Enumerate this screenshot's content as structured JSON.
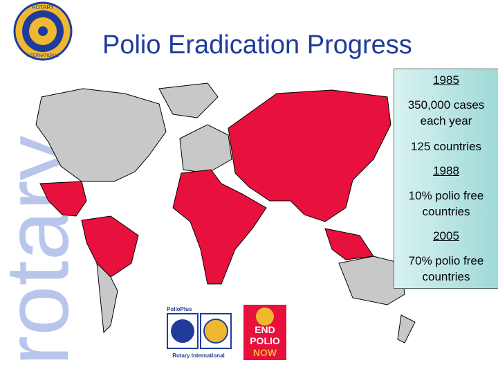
{
  "header": {
    "title": "Polio Eradication Progress"
  },
  "watermark": "rotary",
  "emblem": {
    "top": "ROTARY",
    "bottom": "INTERNATIONAL"
  },
  "info_box": {
    "items": [
      {
        "year": "1985",
        "lines": [
          "350,000 cases each year",
          "125 countries"
        ]
      },
      {
        "year": "1988",
        "lines": [
          "10% polio free countries"
        ]
      },
      {
        "year": "2005",
        "lines": [
          "70% polio free countries"
        ]
      }
    ]
  },
  "logos": {
    "polioplus": {
      "title": "PolioPlus",
      "caption": "Rotary International"
    },
    "end_polio": {
      "lines": [
        "END",
        "POLIO",
        "NOW"
      ]
    }
  }
}
